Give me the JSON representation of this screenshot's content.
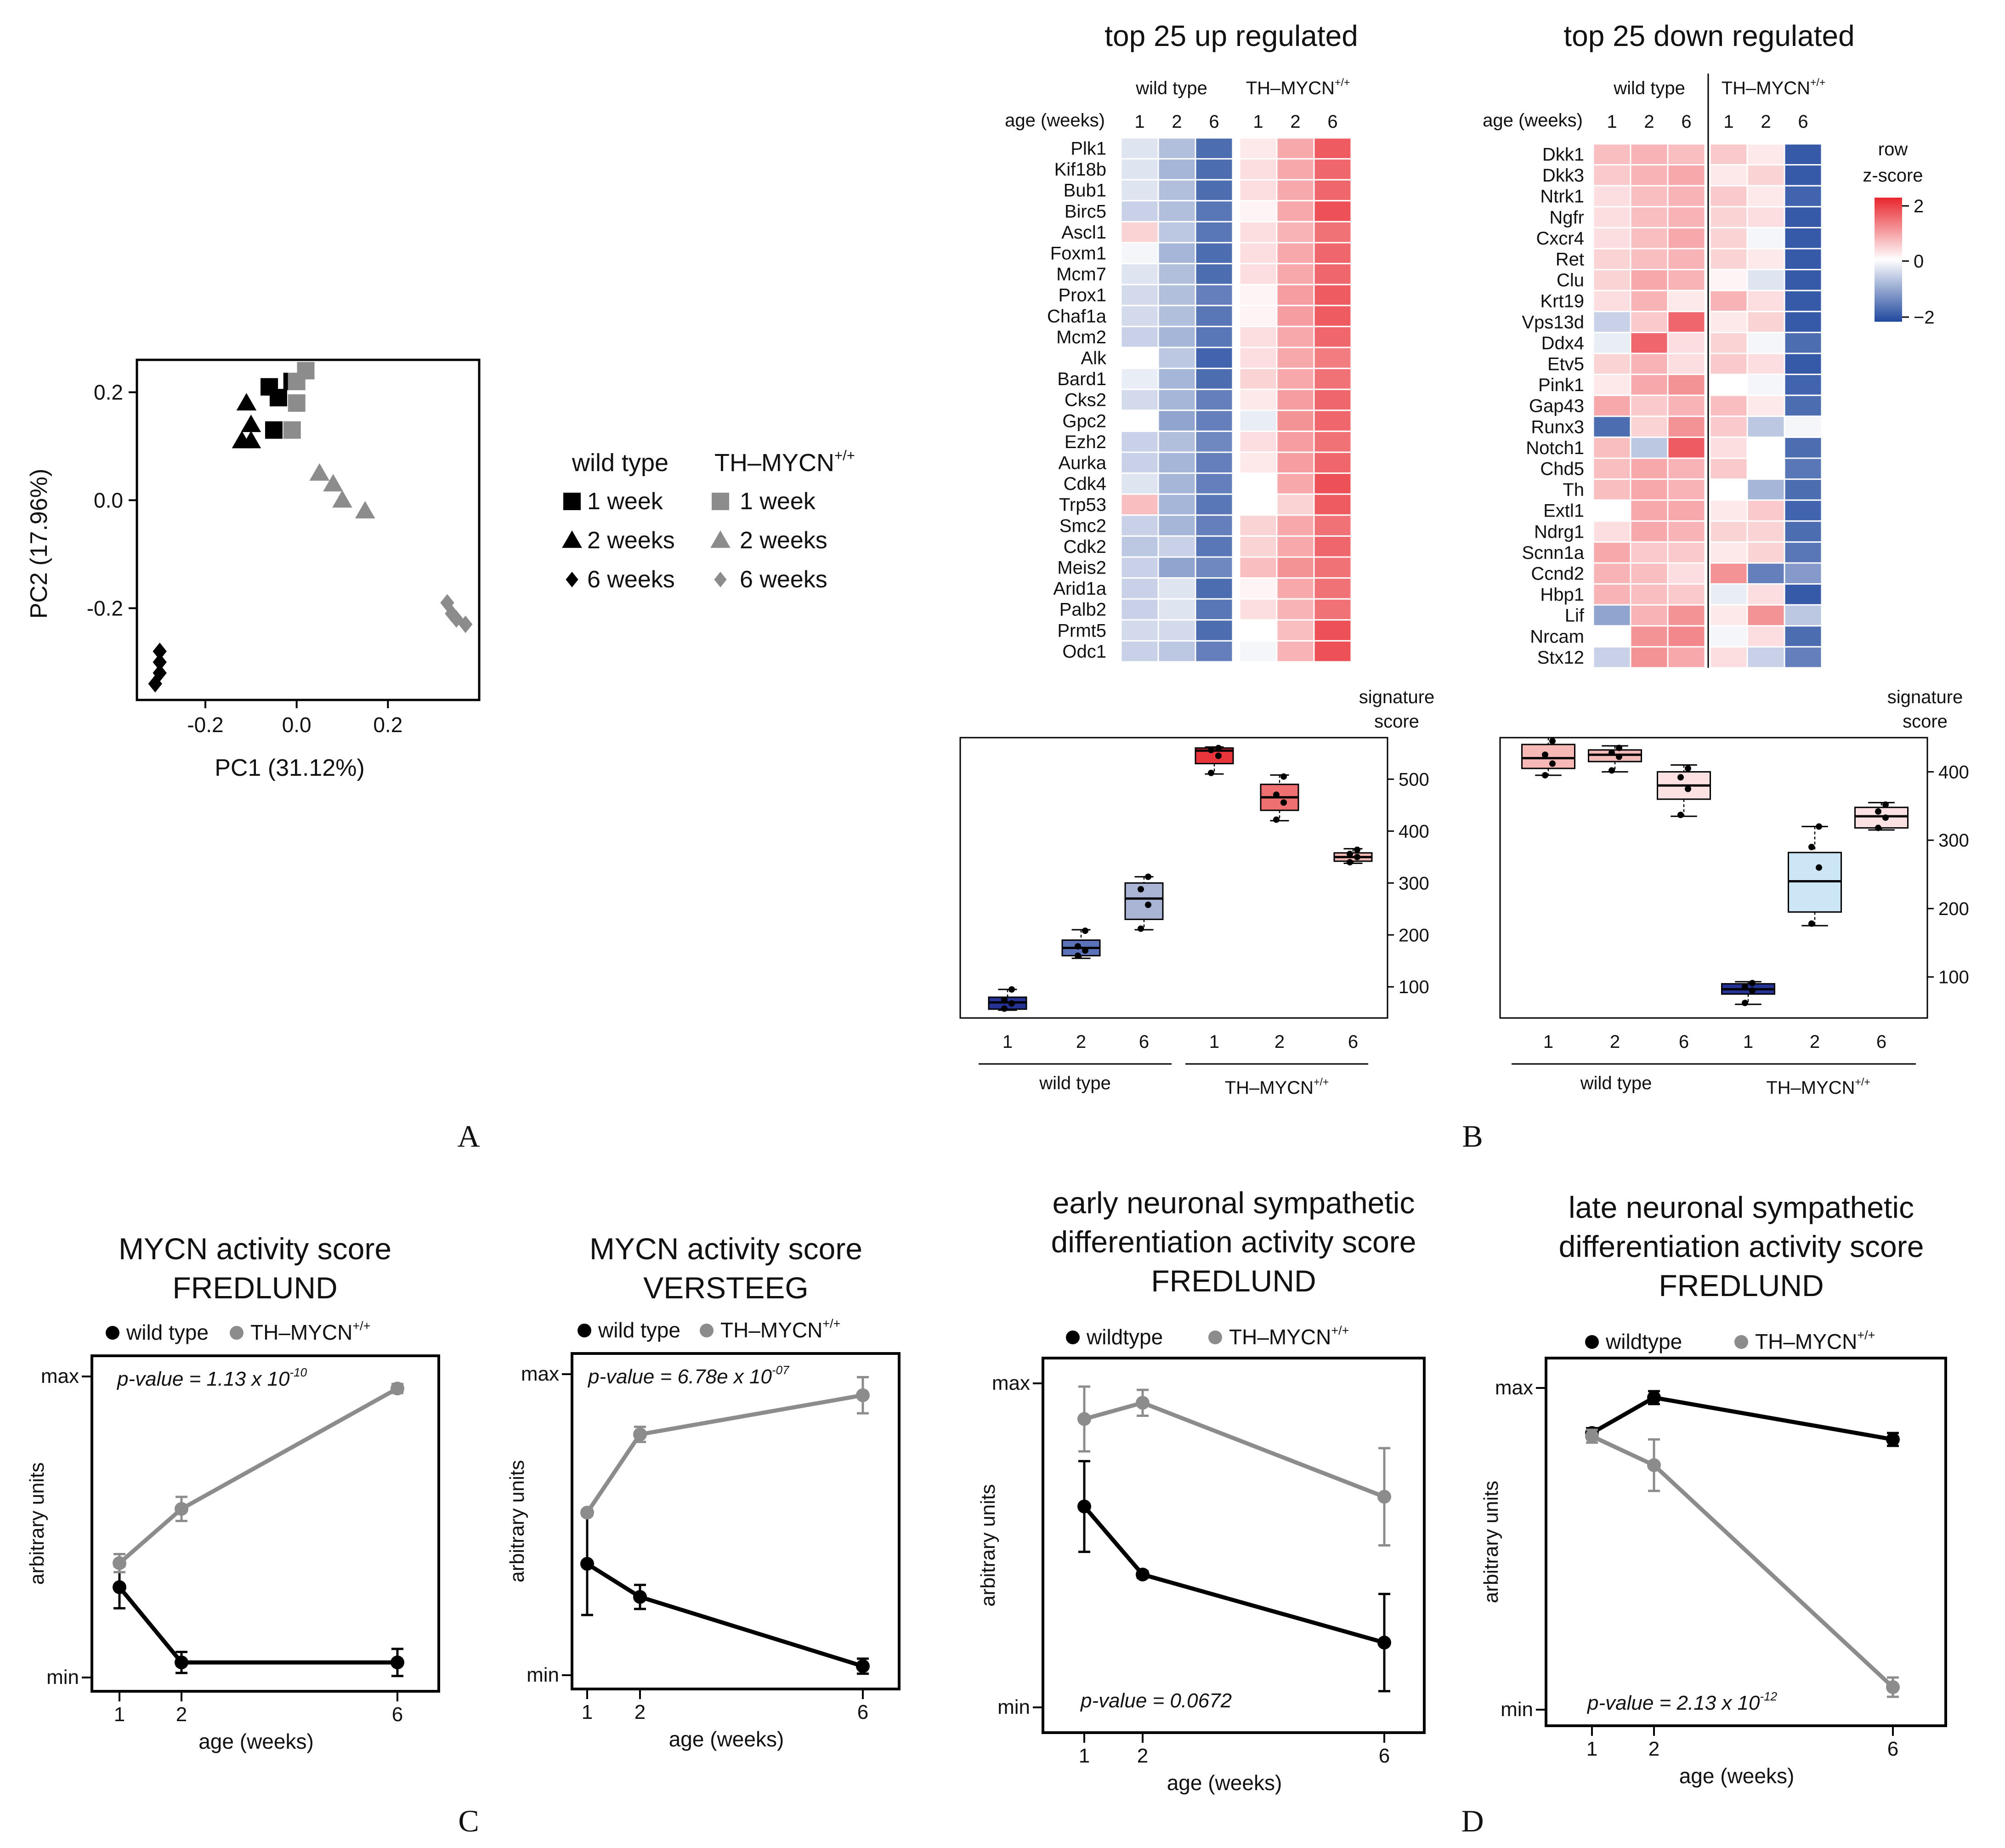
{
  "panels": {
    "A": "A",
    "B": "B",
    "C": "C",
    "D": "D"
  },
  "pca": {
    "type": "scatter",
    "xlabel": "PC1 (31.12%)",
    "ylabel": "PC2 (17.96%)",
    "xlim": [
      -0.35,
      0.4
    ],
    "ylim": [
      -0.37,
      0.26
    ],
    "xticks": [
      -0.2,
      0.0,
      0.2
    ],
    "xtick_labels": [
      "-0.2",
      "0.0",
      "0.2"
    ],
    "yticks": [
      -0.2,
      0.0,
      0.2
    ],
    "ytick_labels": [
      "-0.2",
      "0.0",
      "0.2"
    ],
    "legend": {
      "wt_title": "wild type",
      "tg_title": "TH–MYCN",
      "tg_sup": "+/+",
      "labels": [
        "1 week",
        "2 weeks",
        "6 weeks"
      ]
    },
    "points": [
      {
        "g": "wt",
        "s": "square",
        "x": -0.06,
        "y": 0.21
      },
      {
        "g": "wt",
        "s": "square",
        "x": -0.04,
        "y": 0.19
      },
      {
        "g": "wt",
        "s": "square",
        "x": -0.01,
        "y": 0.22
      },
      {
        "g": "wt",
        "s": "square",
        "x": -0.05,
        "y": 0.13
      },
      {
        "g": "wt",
        "s": "triangle",
        "x": -0.11,
        "y": 0.18
      },
      {
        "g": "wt",
        "s": "triangle",
        "x": -0.1,
        "y": 0.14
      },
      {
        "g": "wt",
        "s": "triangle",
        "x": -0.12,
        "y": 0.11
      },
      {
        "g": "wt",
        "s": "triangle",
        "x": -0.1,
        "y": 0.11
      },
      {
        "g": "wt",
        "s": "diamond",
        "x": -0.3,
        "y": -0.28
      },
      {
        "g": "wt",
        "s": "diamond",
        "x": -0.3,
        "y": -0.3
      },
      {
        "g": "wt",
        "s": "diamond",
        "x": -0.3,
        "y": -0.32
      },
      {
        "g": "wt",
        "s": "diamond",
        "x": -0.31,
        "y": -0.34
      },
      {
        "g": "tg",
        "s": "square",
        "x": 0.02,
        "y": 0.24
      },
      {
        "g": "tg",
        "s": "square",
        "x": 0.0,
        "y": 0.22
      },
      {
        "g": "tg",
        "s": "square",
        "x": 0.0,
        "y": 0.18
      },
      {
        "g": "tg",
        "s": "square",
        "x": -0.01,
        "y": 0.13
      },
      {
        "g": "tg",
        "s": "triangle",
        "x": 0.05,
        "y": 0.05
      },
      {
        "g": "tg",
        "s": "triangle",
        "x": 0.08,
        "y": 0.03
      },
      {
        "g": "tg",
        "s": "triangle",
        "x": 0.1,
        "y": 0.0
      },
      {
        "g": "tg",
        "s": "triangle",
        "x": 0.15,
        "y": -0.02
      },
      {
        "g": "tg",
        "s": "diamond",
        "x": 0.33,
        "y": -0.19
      },
      {
        "g": "tg",
        "s": "diamond",
        "x": 0.34,
        "y": -0.21
      },
      {
        "g": "tg",
        "s": "diamond",
        "x": 0.35,
        "y": -0.22
      },
      {
        "g": "tg",
        "s": "diamond",
        "x": 0.37,
        "y": -0.23
      }
    ]
  },
  "heat_common": {
    "age_label": "age (weeks)",
    "wt_label": "wild type",
    "tg_label": "TH–MYCN",
    "tg_sup": "+/+",
    "ages": [
      "1",
      "2",
      "6",
      "1",
      "2",
      "6"
    ],
    "colorbar_title1": "row",
    "colorbar_title2": "z-score",
    "colorbar_ticks": [
      "2",
      "0",
      "−2"
    ]
  },
  "heat_up": {
    "title": "top 25 up regulated",
    "genes": [
      "Plk1",
      "Kif18b",
      "Bub1",
      "Birc5",
      "Ascl1",
      "Foxm1",
      "Mcm7",
      "Prox1",
      "Chaf1a",
      "Mcm2",
      "Alk",
      "Bard1",
      "Cks2",
      "Gpc2",
      "Ezh2",
      "Aurka",
      "Cdk4",
      "Trp53",
      "Smc2",
      "Cdk2",
      "Meis2",
      "Arid1a",
      "Palb2",
      "Prmt5",
      "Odc1"
    ],
    "z": [
      [
        -0.3,
        -0.7,
        -1.6,
        0.2,
        0.8,
        1.5
      ],
      [
        -0.3,
        -0.8,
        -1.6,
        0.3,
        0.8,
        1.4
      ],
      [
        -0.3,
        -0.7,
        -1.6,
        0.3,
        0.8,
        1.4
      ],
      [
        -0.5,
        -0.7,
        -1.5,
        0.1,
        0.8,
        1.6
      ],
      [
        0.4,
        -0.6,
        -1.5,
        0.3,
        0.7,
        1.3
      ],
      [
        -0.1,
        -0.8,
        -1.6,
        0.3,
        0.8,
        1.4
      ],
      [
        -0.3,
        -0.7,
        -1.6,
        0.3,
        0.8,
        1.4
      ],
      [
        -0.4,
        -0.7,
        -1.4,
        0.1,
        0.9,
        1.5
      ],
      [
        -0.4,
        -0.7,
        -1.5,
        0.1,
        0.9,
        1.5
      ],
      [
        -0.5,
        -0.8,
        -1.5,
        0.3,
        0.8,
        1.4
      ],
      [
        0.0,
        -0.6,
        -1.7,
        0.3,
        0.8,
        1.2
      ],
      [
        -0.2,
        -0.8,
        -1.6,
        0.4,
        0.8,
        1.3
      ],
      [
        -0.4,
        -0.8,
        -1.4,
        0.2,
        0.9,
        1.4
      ],
      [
        0.0,
        -1.0,
        -1.4,
        -0.2,
        1.0,
        1.4
      ],
      [
        -0.5,
        -0.7,
        -1.3,
        0.3,
        0.9,
        1.3
      ],
      [
        -0.5,
        -0.8,
        -1.4,
        0.2,
        0.9,
        1.4
      ],
      [
        -0.3,
        -0.8,
        -1.4,
        0.0,
        0.8,
        1.6
      ],
      [
        0.6,
        -0.8,
        -1.5,
        0.0,
        0.4,
        1.5
      ],
      [
        -0.5,
        -0.8,
        -1.4,
        0.4,
        0.8,
        1.3
      ],
      [
        -0.6,
        -0.5,
        -1.5,
        0.4,
        0.8,
        1.4
      ],
      [
        -0.5,
        -1.0,
        -1.3,
        0.6,
        1.0,
        1.3
      ],
      [
        -0.5,
        -0.3,
        -1.6,
        0.1,
        0.8,
        1.3
      ],
      [
        -0.5,
        -0.3,
        -1.5,
        0.3,
        0.7,
        1.3
      ],
      [
        -0.4,
        -0.4,
        -1.6,
        0.0,
        0.6,
        1.6
      ],
      [
        -0.5,
        -0.6,
        -1.4,
        -0.1,
        0.7,
        1.6
      ]
    ],
    "box": {
      "score_label1": "signature",
      "score_label2": "score",
      "yticks": [
        100,
        200,
        300,
        400,
        500
      ],
      "ylim": [
        40,
        580
      ],
      "groups": [
        {
          "x": "1",
          "min": 55,
          "q1": 57,
          "med": 70,
          "q3": 80,
          "max": 95,
          "color": "#253494",
          "pts": [
            58,
            68,
            75,
            95
          ]
        },
        {
          "x": "2",
          "min": 155,
          "q1": 160,
          "med": 175,
          "q3": 190,
          "max": 210,
          "color": "#5b72b8",
          "pts": [
            160,
            170,
            178,
            208
          ]
        },
        {
          "x": "6",
          "min": 210,
          "q1": 230,
          "med": 270,
          "q3": 300,
          "max": 312,
          "color": "#aab5d6",
          "pts": [
            212,
            258,
            288,
            312
          ]
        },
        {
          "x": "1",
          "min": 510,
          "q1": 530,
          "med": 555,
          "q3": 560,
          "max": 562,
          "color": "#e8343b",
          "pts": [
            512,
            545,
            556,
            560
          ]
        },
        {
          "x": "2",
          "min": 420,
          "q1": 440,
          "med": 465,
          "q3": 490,
          "max": 508,
          "color": "#ef7070",
          "pts": [
            422,
            455,
            470,
            505
          ]
        },
        {
          "x": "6",
          "min": 338,
          "q1": 342,
          "med": 350,
          "q3": 358,
          "max": 366,
          "color": "#f5b9b6",
          "pts": [
            340,
            350,
            356,
            364
          ]
        }
      ]
    }
  },
  "heat_down": {
    "title": "top 25 down regulated",
    "genes": [
      "Dkk1",
      "Dkk3",
      "Ntrk1",
      "Ngfr",
      "Cxcr4",
      "Ret",
      "Clu",
      "Krt19",
      "Vps13d",
      "Ddx4",
      "Etv5",
      "Pink1",
      "Gap43",
      "Runx3",
      "Notch1",
      "Chd5",
      "Th",
      "Extl1",
      "Ndrg1",
      "Scnn1a",
      "Ccnd2",
      "Hbp1",
      "Lif",
      "Nrcam",
      "Stx12"
    ],
    "z": [
      [
        0.6,
        0.7,
        0.6,
        0.5,
        0.2,
        -1.8
      ],
      [
        0.5,
        0.7,
        0.8,
        0.2,
        0.4,
        -1.8
      ],
      [
        0.3,
        0.6,
        0.7,
        0.5,
        0.2,
        -1.7
      ],
      [
        0.3,
        0.6,
        0.7,
        0.4,
        0.3,
        -1.8
      ],
      [
        0.3,
        0.6,
        0.8,
        0.4,
        -0.1,
        -1.8
      ],
      [
        0.4,
        0.6,
        0.7,
        0.4,
        0.2,
        -1.8
      ],
      [
        0.4,
        0.8,
        0.7,
        0.1,
        -0.3,
        -1.8
      ],
      [
        0.3,
        0.7,
        0.2,
        0.7,
        0.3,
        -1.8
      ],
      [
        -0.5,
        0.5,
        1.4,
        0.2,
        0.4,
        -1.8
      ],
      [
        -0.2,
        1.4,
        0.3,
        0.4,
        -0.1,
        -1.6
      ],
      [
        0.4,
        0.7,
        0.3,
        0.5,
        0.3,
        -1.8
      ],
      [
        0.2,
        0.8,
        1.0,
        0.0,
        -0.1,
        -1.7
      ],
      [
        0.8,
        0.5,
        0.7,
        0.6,
        0.2,
        -1.6
      ],
      [
        -1.6,
        0.4,
        1.0,
        0.5,
        -0.6,
        -0.1
      ],
      [
        0.6,
        -0.6,
        1.5,
        0.3,
        0.0,
        -1.6
      ],
      [
        0.6,
        0.8,
        0.7,
        0.5,
        0.0,
        -1.5
      ],
      [
        0.6,
        0.8,
        0.7,
        0.0,
        -0.8,
        -1.6
      ],
      [
        0.0,
        0.8,
        0.8,
        0.2,
        0.5,
        -1.7
      ],
      [
        0.3,
        0.8,
        0.7,
        0.4,
        0.4,
        -1.6
      ],
      [
        0.8,
        0.5,
        0.5,
        0.2,
        0.4,
        -1.5
      ],
      [
        0.7,
        0.6,
        0.3,
        1.0,
        -1.4,
        -1.1
      ],
      [
        0.7,
        0.6,
        0.5,
        -0.2,
        0.3,
        -1.8
      ],
      [
        -1.0,
        0.7,
        1.0,
        0.2,
        1.0,
        -0.6
      ],
      [
        0.0,
        1.0,
        1.1,
        -0.1,
        0.3,
        -1.6
      ],
      [
        -0.5,
        1.0,
        0.8,
        0.3,
        -0.5,
        -1.4
      ]
    ],
    "box": {
      "score_label1": "signature",
      "score_label2": "score",
      "yticks": [
        100,
        200,
        300,
        400
      ],
      "ylim": [
        40,
        450
      ],
      "groups": [
        {
          "x": "1",
          "min": 395,
          "q1": 405,
          "med": 420,
          "q3": 440,
          "max": 450,
          "color": "#f6b9b5",
          "pts": [
            395,
            412,
            425,
            445
          ]
        },
        {
          "x": "2",
          "min": 400,
          "q1": 415,
          "med": 425,
          "q3": 432,
          "max": 438,
          "color": "#f4bcb8",
          "pts": [
            402,
            422,
            428,
            435
          ]
        },
        {
          "x": "6",
          "min": 335,
          "q1": 360,
          "med": 380,
          "q3": 400,
          "max": 410,
          "color": "#fbe1e1",
          "pts": [
            337,
            375,
            392,
            405
          ]
        },
        {
          "x": "1",
          "min": 60,
          "q1": 75,
          "med": 82,
          "q3": 90,
          "max": 93,
          "color": "#253494",
          "pts": [
            62,
            80,
            86,
            91
          ]
        },
        {
          "x": "2",
          "min": 175,
          "q1": 195,
          "med": 240,
          "q3": 282,
          "max": 320,
          "color": "#cde6f5",
          "pts": [
            178,
            260,
            290,
            320
          ]
        },
        {
          "x": "6",
          "min": 315,
          "q1": 318,
          "med": 335,
          "q3": 348,
          "max": 355,
          "color": "#fbe1e1",
          "pts": [
            318,
            333,
            342,
            352
          ]
        }
      ]
    }
  },
  "chart_data": [
    {
      "type": "line",
      "title": [
        "MYCN activity score",
        "FREDLUND"
      ],
      "xlabel": "age (weeks)",
      "ylabel": "arbitrary units",
      "x": [
        1,
        2,
        6
      ],
      "ylim": [
        0,
        1
      ],
      "ytick_labels": [
        "max",
        "min"
      ],
      "pvalue": "p-value = 1.13 x 10",
      "pvalue_exp": "-10",
      "pvalue_pos": "top",
      "series": [
        {
          "name": "wild type",
          "color": "#000000",
          "values": [
            0.3,
            0.05,
            0.05
          ],
          "err": [
            0.07,
            0.035,
            0.045
          ]
        },
        {
          "name": "TH–MYCN",
          "sup": "+/+",
          "color": "#8c8c8c",
          "values": [
            0.38,
            0.56,
            0.96
          ],
          "err": [
            0.03,
            0.04,
            0.015
          ]
        }
      ]
    },
    {
      "type": "line",
      "title": [
        "MYCN activity score",
        "VERSTEEG"
      ],
      "xlabel": "age (weeks)",
      "ylabel": "arbitrary units",
      "x": [
        1,
        2,
        6
      ],
      "ylim": [
        0,
        1
      ],
      "ytick_labels": [
        "max",
        "min"
      ],
      "pvalue": "p-value = 6.78e x 10",
      "pvalue_exp": "-07",
      "pvalue_pos": "top",
      "series": [
        {
          "name": "wild type",
          "color": "#000000",
          "values": [
            0.37,
            0.26,
            0.03
          ],
          "err": [
            0.17,
            0.04,
            0.025
          ]
        },
        {
          "name": "TH–MYCN",
          "sup": "+/+",
          "color": "#8c8c8c",
          "values": [
            0.54,
            0.8,
            0.93
          ],
          "err": [
            0.01,
            0.025,
            0.06
          ]
        }
      ]
    },
    {
      "type": "line",
      "title": [
        "early neuronal sympathetic",
        "differentiation activity score",
        "FREDLUND"
      ],
      "xlabel": "age (weeks)",
      "ylabel": "arbitrary units",
      "x": [
        1,
        2,
        6
      ],
      "ylim": [
        0,
        1
      ],
      "ytick_labels": [
        "max",
        "min"
      ],
      "pvalue": "p-value = 0.0672",
      "pvalue_exp": "",
      "pvalue_pos": "bottom",
      "series": [
        {
          "name": "wildtype",
          "color": "#000000",
          "values": [
            0.62,
            0.41,
            0.2
          ],
          "err": [
            0.14,
            0.01,
            0.15
          ]
        },
        {
          "name": "TH–MYCN",
          "sup": "+/+",
          "color": "#8c8c8c",
          "values": [
            0.89,
            0.94,
            0.65
          ],
          "err": [
            0.1,
            0.04,
            0.15
          ]
        }
      ]
    },
    {
      "type": "line",
      "title": [
        "late neuronal sympathetic",
        "differentiation activity score",
        "FREDLUND"
      ],
      "xlabel": "age (weeks)",
      "ylabel": "arbitrary units",
      "x": [
        1,
        2,
        6
      ],
      "ylim": [
        0,
        1
      ],
      "ytick_labels": [
        "max",
        "min"
      ],
      "pvalue": "p-value = 2.13 x 10",
      "pvalue_exp": "-12",
      "pvalue_pos": "bottom",
      "series": [
        {
          "name": "wildtype",
          "color": "#000000",
          "values": [
            0.86,
            0.97,
            0.84
          ],
          "err": [
            0.015,
            0.02,
            0.02
          ]
        },
        {
          "name": "TH–MYCN",
          "sup": "+/+",
          "color": "#8c8c8c",
          "values": [
            0.85,
            0.76,
            0.07
          ],
          "err": [
            0.02,
            0.08,
            0.03
          ]
        }
      ]
    }
  ]
}
